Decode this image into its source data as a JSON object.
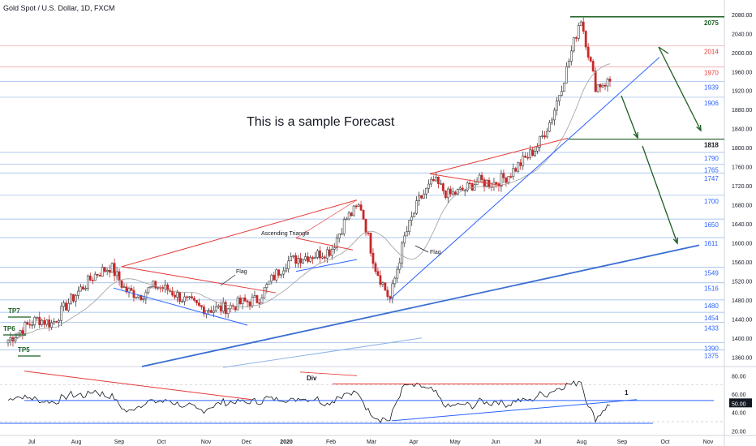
{
  "header": {
    "title": "Gold Spot / U.S. Dollar, 1D, FXCM"
  },
  "annotation": {
    "forecast_text": "This is a sample Forecast",
    "ascending_triangle": "Ascending Triangle",
    "flag_1": "Flag",
    "flag_2": "Flag",
    "div": "Div",
    "rsi_marker": "1",
    "tp_labels": [
      "TP7",
      "TP6",
      "TP5"
    ]
  },
  "colors": {
    "support_blue": "#2962ff",
    "support_line": "#3a6ed1",
    "resistance_red": "#e53935",
    "level_red": "#ef9a9a",
    "level_blue": "#90b4e8",
    "forecast_green": "#1b5e20",
    "tp_green": "#1b5e20",
    "candle_up": "#26a69a",
    "candle_down": "#ef5350",
    "candle_dark": "#2b2b2b",
    "ma_gray": "#9e9e9e"
  },
  "chart_data": [
    {
      "type": "candlestick",
      "symbol": "Gold Spot / U.S. Dollar",
      "interval": "1D",
      "ylim": [
        1340,
        2090
      ],
      "y_ticks": [
        1360,
        1400,
        1440,
        1480,
        1520,
        1560,
        1600,
        1640,
        1680,
        1720,
        1760,
        1800,
        1840,
        1880,
        1920,
        1960,
        2000,
        2040,
        2080
      ],
      "y_tick_labels": [
        "1360.00",
        "1400.00",
        "1440.00",
        "1480.00",
        "1520.00",
        "1560.00",
        "1600.00",
        "1640.00",
        "1680.00",
        "1720.00",
        "1760.00",
        "1800.00",
        "1840.00",
        "1880.00",
        "1920.00",
        "1960.00",
        "2000.00",
        "2040.00",
        "2080.00"
      ],
      "x_tick_labels": [
        "Jul",
        "Aug",
        "Sep",
        "Oct",
        "Nov",
        "Dec",
        "2020",
        "Feb",
        "Mar",
        "Apr",
        "May",
        "Jun",
        "Jul",
        "Aug",
        "Sep",
        "Oct",
        "Nov"
      ],
      "level_labels": [
        {
          "value": 2075,
          "label": "2075",
          "color": "green"
        },
        {
          "value": 2014,
          "label": "2014",
          "color": "red"
        },
        {
          "value": 1970,
          "label": "1970",
          "color": "red"
        },
        {
          "value": 1939,
          "label": "1939",
          "color": "blue"
        },
        {
          "value": 1906,
          "label": "1906",
          "color": "blue"
        },
        {
          "value": 1818,
          "label": "1818",
          "color": "dark"
        },
        {
          "value": 1790,
          "label": "1790",
          "color": "blue"
        },
        {
          "value": 1765,
          "label": "1765",
          "color": "blue"
        },
        {
          "value": 1747,
          "label": "1747",
          "color": "blue"
        },
        {
          "value": 1700,
          "label": "1700",
          "color": "blue"
        },
        {
          "value": 1650,
          "label": "1650",
          "color": "blue"
        },
        {
          "value": 1611,
          "label": "1611",
          "color": "blue"
        },
        {
          "value": 1549,
          "label": "1549",
          "color": "blue"
        },
        {
          "value": 1516,
          "label": "1516",
          "color": "blue"
        },
        {
          "value": 1480,
          "label": "1480",
          "color": "blue"
        },
        {
          "value": 1454,
          "label": "1454",
          "color": "blue"
        },
        {
          "value": 1433,
          "label": "1433",
          "color": "blue"
        },
        {
          "value": 1390,
          "label": "1390",
          "color": "blue"
        },
        {
          "value": 1375,
          "label": "1375",
          "color": "blue"
        }
      ],
      "price_path": [
        [
          "Jul",
          1395
        ],
        [
          "Jul",
          1420
        ],
        [
          "Jul",
          1440
        ],
        [
          "Aug",
          1430
        ],
        [
          "Aug",
          1470
        ],
        [
          "Aug",
          1505
        ],
        [
          "Sep",
          1535
        ],
        [
          "Sep",
          1550
        ],
        [
          "Sep",
          1500
        ],
        [
          "Oct",
          1490
        ],
        [
          "Oct",
          1510
        ],
        [
          "Oct",
          1500
        ],
        [
          "Nov",
          1480
        ],
        [
          "Nov",
          1465
        ],
        [
          "Nov",
          1460
        ],
        [
          "Dec",
          1465
        ],
        [
          "Dec",
          1475
        ],
        [
          "Dec",
          1480
        ],
        [
          "2020",
          1525
        ],
        [
          "2020",
          1560
        ],
        [
          "2020",
          1570
        ],
        [
          "Feb",
          1575
        ],
        [
          "Feb",
          1585
        ],
        [
          "Feb",
          1650
        ],
        [
          "Mar",
          1680
        ],
        [
          "Mar",
          1550
        ],
        [
          "Mar",
          1480
        ],
        [
          "Apr",
          1610
        ],
        [
          "Apr",
          1690
        ],
        [
          "Apr",
          1730
        ],
        [
          "May",
          1700
        ],
        [
          "May",
          1710
        ],
        [
          "May",
          1730
        ],
        [
          "Jun",
          1725
        ],
        [
          "Jun",
          1740
        ],
        [
          "Jun",
          1770
        ],
        [
          "Jul",
          1800
        ],
        [
          "Jul",
          1860
        ],
        [
          "Jul",
          1960
        ],
        [
          "Aug",
          2075
        ],
        [
          "Aug",
          1930
        ],
        [
          "Aug",
          1940
        ]
      ]
    },
    {
      "type": "line",
      "name": "",
      "ylim": [
        15,
        90
      ],
      "y_ticks": [
        20,
        40,
        50,
        60,
        80
      ],
      "y_tick_labels": [
        "20.00",
        "40.00",
        "50.00",
        "60.00",
        "80.00"
      ],
      "current_value_label": "50.00"
    }
  ]
}
